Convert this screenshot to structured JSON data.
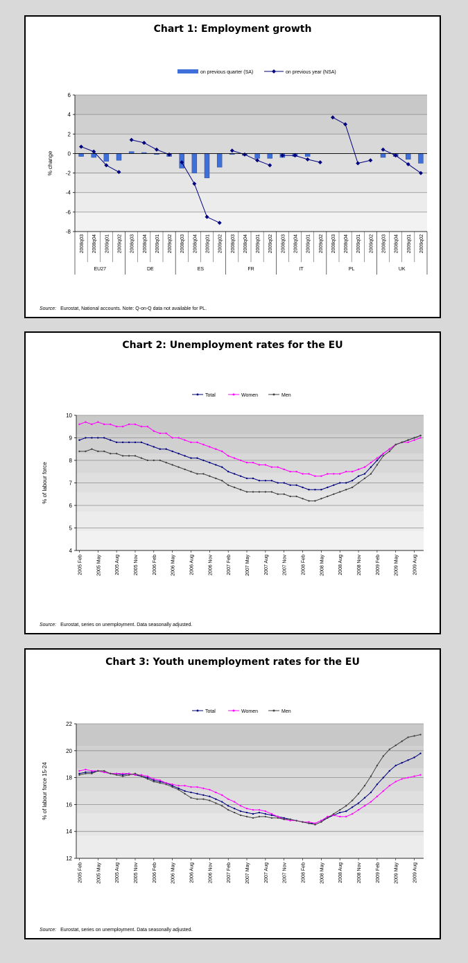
{
  "chart_data": [
    {
      "type": "bar+line",
      "title": "Chart 1: Employment growth",
      "ylabel": "% change",
      "ylim": [
        -8,
        6
      ],
      "yticks": [
        6,
        4,
        2,
        0,
        -2,
        -4,
        -6,
        -8
      ],
      "quarters": [
        "2008q03",
        "2008q04",
        "2009q01",
        "2009q02"
      ],
      "groups": [
        "EU27",
        "DE",
        "ES",
        "FR",
        "IT",
        "PL",
        "UK"
      ],
      "series": [
        {
          "name": "on previous quarter (SA)",
          "kind": "bar",
          "color": "#3f6fd9",
          "values": [
            [
              -0.3,
              -0.4,
              -0.8,
              -0.7
            ],
            [
              0.2,
              0.1,
              -0.1,
              -0.3
            ],
            [
              -1.5,
              -2.0,
              -2.5,
              -1.4
            ],
            [
              -0.1,
              -0.2,
              -0.5,
              -0.5
            ],
            [
              -0.4,
              -0.3,
              -0.3,
              null
            ],
            [
              null,
              null,
              null,
              null
            ],
            [
              -0.4,
              -0.3,
              -0.6,
              -1.0
            ]
          ]
        },
        {
          "name": "on previous year (NSA)",
          "kind": "line",
          "color": "#00007f",
          "values": [
            [
              0.7,
              0.2,
              -1.2,
              -1.9
            ],
            [
              1.4,
              1.1,
              0.4,
              -0.1
            ],
            [
              -0.9,
              -3.1,
              -6.5,
              -7.1
            ],
            [
              0.3,
              -0.1,
              -0.7,
              -1.2
            ],
            [
              -0.2,
              -0.2,
              -0.6,
              -0.9
            ],
            [
              3.7,
              3.0,
              -1.0,
              -0.7
            ],
            [
              0.4,
              -0.2,
              -1.1,
              -2.0
            ]
          ]
        }
      ],
      "source_label": "Source:",
      "source": "Eurostat, National accounts. Note: Q-on-Q data not available for PL."
    },
    {
      "type": "line",
      "title": "Chart 2: Unemployment rates for the EU",
      "ylabel": "% of labour force",
      "ylim": [
        4,
        10
      ],
      "yticks": [
        10,
        9,
        8,
        7,
        6,
        5,
        4
      ],
      "xticks": [
        "2005 Feb",
        "2005 May",
        "2005 Aug",
        "2005 Nov",
        "2006 Feb",
        "2006 May",
        "2006 Aug",
        "2006 Nov",
        "2007 Feb",
        "2007 May",
        "2007 Aug",
        "2007 Nov",
        "2008 Feb",
        "2008 May",
        "2008 Aug",
        "2008 Nov",
        "2009 Feb",
        "2009 May",
        "2009 Aug"
      ],
      "series": [
        {
          "name": "Total",
          "color": "#00007f",
          "values": [
            8.9,
            9.0,
            9.0,
            9.0,
            9.0,
            8.9,
            8.8,
            8.8,
            8.8,
            8.8,
            8.8,
            8.7,
            8.6,
            8.5,
            8.5,
            8.4,
            8.3,
            8.2,
            8.1,
            8.1,
            8.0,
            7.9,
            7.8,
            7.7,
            7.5,
            7.4,
            7.3,
            7.2,
            7.2,
            7.1,
            7.1,
            7.1,
            7.0,
            7.0,
            6.9,
            6.9,
            6.8,
            6.7,
            6.7,
            6.7,
            6.8,
            6.9,
            7.0,
            7.0,
            7.1,
            7.3,
            7.4,
            7.7,
            8.0,
            8.3,
            8.5,
            8.7,
            8.8,
            8.9,
            9.0,
            9.1
          ]
        },
        {
          "name": "Women",
          "color": "#ff00ff",
          "values": [
            9.6,
            9.7,
            9.6,
            9.7,
            9.6,
            9.6,
            9.5,
            9.5,
            9.6,
            9.6,
            9.5,
            9.5,
            9.3,
            9.2,
            9.2,
            9.0,
            9.0,
            8.9,
            8.8,
            8.8,
            8.7,
            8.6,
            8.5,
            8.4,
            8.2,
            8.1,
            8.0,
            7.9,
            7.9,
            7.8,
            7.8,
            7.7,
            7.7,
            7.6,
            7.5,
            7.5,
            7.4,
            7.4,
            7.3,
            7.3,
            7.4,
            7.4,
            7.4,
            7.5,
            7.5,
            7.6,
            7.7,
            7.9,
            8.1,
            8.3,
            8.5,
            8.7,
            8.8,
            8.8,
            8.9,
            9.0
          ]
        },
        {
          "name": "Men",
          "color": "#404040",
          "values": [
            8.4,
            8.4,
            8.5,
            8.4,
            8.4,
            8.3,
            8.3,
            8.2,
            8.2,
            8.2,
            8.1,
            8.0,
            8.0,
            8.0,
            7.9,
            7.8,
            7.7,
            7.6,
            7.5,
            7.4,
            7.4,
            7.3,
            7.2,
            7.1,
            6.9,
            6.8,
            6.7,
            6.6,
            6.6,
            6.6,
            6.6,
            6.6,
            6.5,
            6.5,
            6.4,
            6.4,
            6.3,
            6.2,
            6.2,
            6.3,
            6.4,
            6.5,
            6.6,
            6.7,
            6.8,
            7.0,
            7.2,
            7.4,
            7.8,
            8.2,
            8.4,
            8.7,
            8.8,
            8.9,
            9.0,
            9.1
          ]
        }
      ],
      "source_label": "Source:",
      "source": "Eurostat, series on unemployment. Data seasonally adjusted."
    },
    {
      "type": "line",
      "title": "Chart 3: Youth unemployment rates for the EU",
      "ylabel": "% of labour force 15-24",
      "ylim": [
        12,
        22
      ],
      "yticks": [
        22,
        20,
        18,
        16,
        14,
        12
      ],
      "xticks": [
        "2005 Feb",
        "2005 May",
        "2005 Aug",
        "2005 Nov",
        "2006 Feb",
        "2006 May",
        "2006 Aug",
        "2006 Nov",
        "2007 Feb",
        "2007 May",
        "2007 Aug",
        "2007 Nov",
        "2008 Feb",
        "2008 May",
        "2008 Aug",
        "2008 Nov",
        "2009 Feb",
        "2009 May",
        "2009 Aug"
      ],
      "series": [
        {
          "name": "Total",
          "color": "#00007f",
          "values": [
            18.3,
            18.4,
            18.4,
            18.5,
            18.4,
            18.3,
            18.3,
            18.2,
            18.3,
            18.2,
            18.1,
            18.0,
            17.8,
            17.7,
            17.6,
            17.4,
            17.2,
            17.0,
            16.9,
            16.8,
            16.7,
            16.6,
            16.4,
            16.2,
            15.9,
            15.7,
            15.5,
            15.4,
            15.3,
            15.4,
            15.3,
            15.2,
            15.1,
            15.0,
            14.9,
            14.8,
            14.7,
            14.6,
            14.6,
            14.8,
            15.0,
            15.2,
            15.4,
            15.5,
            15.8,
            16.1,
            16.5,
            16.9,
            17.5,
            18.0,
            18.5,
            18.9,
            19.1,
            19.3,
            19.5,
            19.8
          ]
        },
        {
          "name": "Women",
          "color": "#ff00ff",
          "values": [
            18.5,
            18.6,
            18.5,
            18.5,
            18.4,
            18.3,
            18.3,
            18.3,
            18.3,
            18.2,
            18.2,
            18.1,
            17.9,
            17.8,
            17.6,
            17.5,
            17.4,
            17.4,
            17.3,
            17.3,
            17.2,
            17.1,
            16.9,
            16.7,
            16.4,
            16.2,
            15.9,
            15.7,
            15.6,
            15.6,
            15.5,
            15.3,
            15.1,
            14.9,
            14.8,
            14.8,
            14.7,
            14.7,
            14.6,
            14.8,
            15.1,
            15.2,
            15.1,
            15.1,
            15.3,
            15.6,
            15.9,
            16.2,
            16.6,
            17.0,
            17.4,
            17.7,
            17.9,
            18.0,
            18.1,
            18.2
          ]
        },
        {
          "name": "Men",
          "color": "#404040",
          "values": [
            18.2,
            18.3,
            18.3,
            18.5,
            18.5,
            18.3,
            18.2,
            18.1,
            18.2,
            18.3,
            18.1,
            17.9,
            17.7,
            17.6,
            17.5,
            17.3,
            17.1,
            16.8,
            16.5,
            16.4,
            16.4,
            16.3,
            16.1,
            15.9,
            15.6,
            15.4,
            15.2,
            15.1,
            15.0,
            15.1,
            15.1,
            15.0,
            15.0,
            14.9,
            14.9,
            14.8,
            14.7,
            14.6,
            14.5,
            14.7,
            15.0,
            15.3,
            15.6,
            15.9,
            16.3,
            16.8,
            17.4,
            18.1,
            18.9,
            19.6,
            20.1,
            20.4,
            20.7,
            21.0,
            21.1,
            21.2
          ]
        }
      ],
      "source_label": "Source:",
      "source": "Eurostat, series on unemployment. Data seasonally adjusted."
    }
  ]
}
